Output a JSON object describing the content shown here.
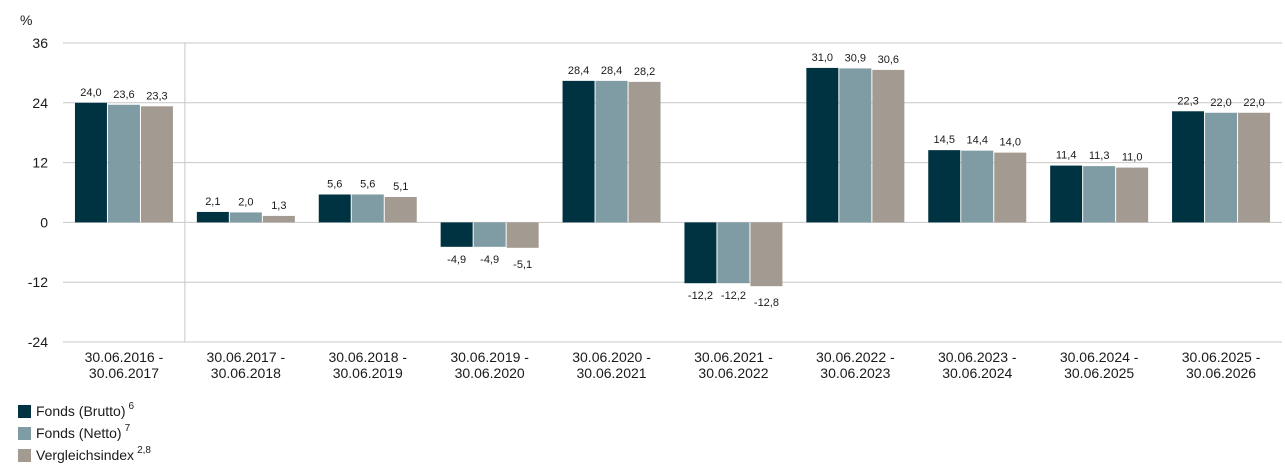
{
  "chart_data": {
    "type": "bar",
    "unit_label": "%",
    "ylim": [
      -24,
      36
    ],
    "yticks": [
      -24,
      -12,
      0,
      12,
      24,
      36
    ],
    "categories": [
      [
        "30.06.2016 -",
        "30.06.2017"
      ],
      [
        "30.06.2017 -",
        "30.06.2018"
      ],
      [
        "30.06.2018 -",
        "30.06.2019"
      ],
      [
        "30.06.2019 -",
        "30.06.2020"
      ],
      [
        "30.06.2020 -",
        "30.06.2021"
      ],
      [
        "30.06.2021 -",
        "30.06.2022"
      ],
      [
        "30.06.2022 -",
        "30.06.2023"
      ],
      [
        "30.06.2023 -",
        "30.06.2024"
      ],
      [
        "30.06.2024 -",
        "30.06.2025"
      ],
      [
        "30.06.2025 -",
        "30.06.2026"
      ]
    ],
    "series": [
      {
        "name": "Fonds (Brutto)",
        "note": "6",
        "color": "#003341",
        "values": [
          24.0,
          2.1,
          5.6,
          -4.9,
          28.4,
          -12.2,
          31.0,
          14.5,
          11.4,
          22.3
        ]
      },
      {
        "name": "Fonds (Netto)",
        "note": "7",
        "color": "#7f9ba3",
        "values": [
          23.6,
          2.0,
          5.6,
          -4.9,
          28.4,
          -12.2,
          30.9,
          14.4,
          11.3,
          22.0
        ]
      },
      {
        "name": "Vergleichsindex",
        "note": "2,8",
        "color": "#a39b91",
        "values": [
          23.3,
          1.3,
          5.1,
          -5.1,
          28.2,
          -12.8,
          30.6,
          14.0,
          11.0,
          22.0
        ]
      }
    ],
    "grid": true,
    "legend_position": "bottom-left",
    "decimal_separator": ","
  }
}
